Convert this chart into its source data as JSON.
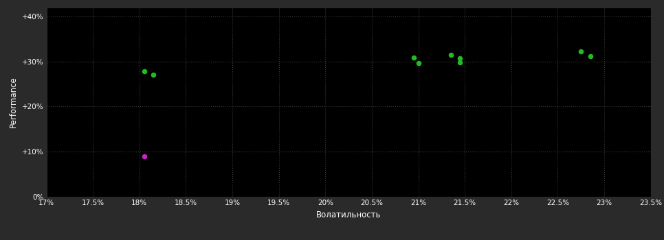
{
  "background_color": "#2a2a2a",
  "plot_bg_color": "#000000",
  "grid_color": "#3a3a3a",
  "text_color": "#ffffff",
  "xlabel": "Волатильность",
  "ylabel": "Performance",
  "xlim": [
    0.17,
    0.235
  ],
  "ylim": [
    0.0,
    0.42
  ],
  "xticks": [
    0.17,
    0.175,
    0.18,
    0.185,
    0.19,
    0.195,
    0.2,
    0.205,
    0.21,
    0.215,
    0.22,
    0.225,
    0.23,
    0.235
  ],
  "yticks": [
    0.0,
    0.1,
    0.2,
    0.3,
    0.4
  ],
  "ytick_labels": [
    "0%",
    "+10%",
    "+20%",
    "+30%",
    "+40%"
  ],
  "xtick_labels": [
    "17%",
    "17.5%",
    "18%",
    "18.5%",
    "19%",
    "19.5%",
    "20%",
    "20.5%",
    "21%",
    "21.5%",
    "22%",
    "22.5%",
    "23%",
    "23.5%"
  ],
  "green_points": [
    [
      0.1805,
      0.278
    ],
    [
      0.1815,
      0.271
    ],
    [
      0.2095,
      0.308
    ],
    [
      0.21,
      0.296
    ],
    [
      0.2135,
      0.315
    ],
    [
      0.2145,
      0.307
    ],
    [
      0.2145,
      0.298
    ],
    [
      0.2275,
      0.322
    ],
    [
      0.2285,
      0.311
    ]
  ],
  "magenta_points": [
    [
      0.1805,
      0.09
    ]
  ],
  "green_color": "#22bb22",
  "magenta_color": "#cc22cc",
  "marker_size": 30,
  "font_size_ticks": 7.5,
  "font_size_labels": 8.5
}
